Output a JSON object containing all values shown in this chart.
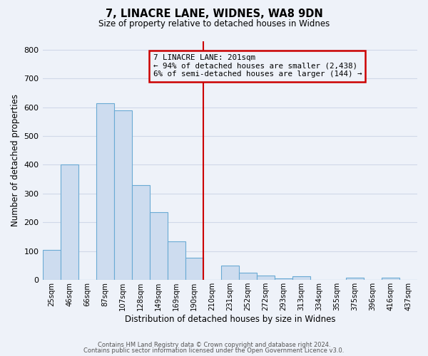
{
  "title_line1": "7, LINACRE LANE, WIDNES, WA8 9DN",
  "title_line2": "Size of property relative to detached houses in Widnes",
  "xlabel": "Distribution of detached houses by size in Widnes",
  "ylabel": "Number of detached properties",
  "bin_labels": [
    "25sqm",
    "46sqm",
    "66sqm",
    "87sqm",
    "107sqm",
    "128sqm",
    "149sqm",
    "169sqm",
    "190sqm",
    "210sqm",
    "231sqm",
    "252sqm",
    "272sqm",
    "293sqm",
    "313sqm",
    "334sqm",
    "355sqm",
    "375sqm",
    "396sqm",
    "416sqm",
    "437sqm"
  ],
  "bar_values": [
    105,
    400,
    0,
    614,
    590,
    330,
    236,
    135,
    78,
    0,
    50,
    25,
    15,
    5,
    12,
    0,
    0,
    8,
    0,
    8,
    0
  ],
  "bar_color": "#cddcef",
  "bar_edge_color": "#6aaad4",
  "vline_position": 9,
  "vline_color": "#cc0000",
  "annotation_box_text": "7 LINACRE LANE: 201sqm\n← 94% of detached houses are smaller (2,438)\n6% of semi-detached houses are larger (144) →",
  "box_edge_color": "#cc0000",
  "ylim": [
    0,
    830
  ],
  "yticks": [
    0,
    100,
    200,
    300,
    400,
    500,
    600,
    700,
    800
  ],
  "footer_line1": "Contains HM Land Registry data © Crown copyright and database right 2024.",
  "footer_line2": "Contains public sector information licensed under the Open Government Licence v3.0.",
  "background_color": "#eef2f9",
  "grid_color": "#d0d8e8"
}
